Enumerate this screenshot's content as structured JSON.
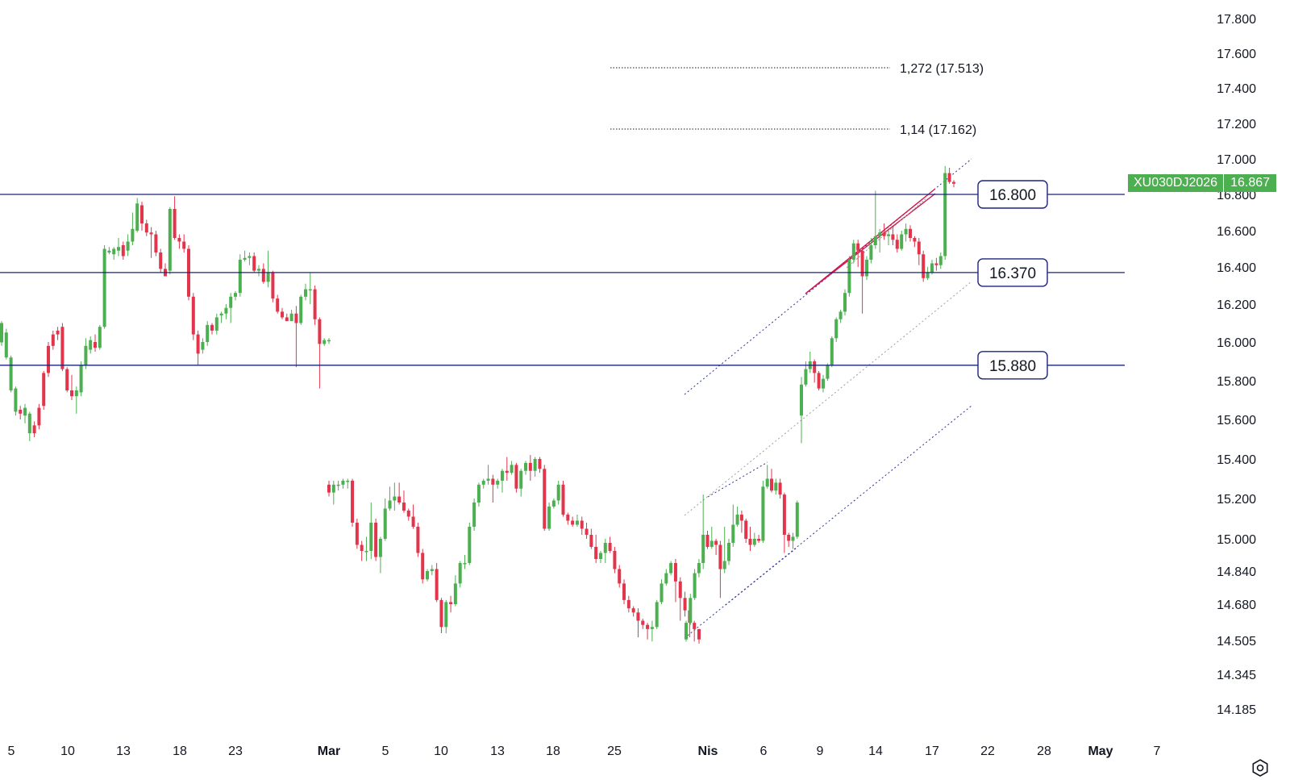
{
  "colors": {
    "up": "#4caf50",
    "down": "#e2354c",
    "level": "#1a237e",
    "channel": "#2c3299",
    "wedge": "#d0184f",
    "grey": "#9e9e9e"
  },
  "icons": {
    "settings": "gear-icon"
  },
  "ticker": {
    "symbol": "XU030DJ2026",
    "price": "16.867"
  },
  "chart_data": {
    "type": "candlestick",
    "y_ticks": [
      "17.800",
      "17.600",
      "17.400",
      "17.200",
      "17.000",
      "16.800",
      "16.600",
      "16.400",
      "16.200",
      "16.000",
      "15.800",
      "15.600",
      "15.400",
      "15.200",
      "15.000",
      "14.840",
      "14.680",
      "14.505",
      "14.345",
      "14.185"
    ],
    "x_ticks": [
      {
        "label": "5",
        "bold": false
      },
      {
        "label": "10",
        "bold": false
      },
      {
        "label": "13",
        "bold": false
      },
      {
        "label": "18",
        "bold": false
      },
      {
        "label": "23",
        "bold": false
      },
      {
        "label": "Mar",
        "bold": true
      },
      {
        "label": "5",
        "bold": false
      },
      {
        "label": "10",
        "bold": false
      },
      {
        "label": "13",
        "bold": false
      },
      {
        "label": "18",
        "bold": false
      },
      {
        "label": "25",
        "bold": false
      },
      {
        "label": "Nis",
        "bold": true
      },
      {
        "label": "6",
        "bold": false
      },
      {
        "label": "9",
        "bold": false
      },
      {
        "label": "14",
        "bold": false
      },
      {
        "label": "17",
        "bold": false
      },
      {
        "label": "22",
        "bold": false
      },
      {
        "label": "28",
        "bold": false
      },
      {
        "label": "May",
        "bold": true
      },
      {
        "label": "7",
        "bold": false
      }
    ],
    "levels": [
      {
        "label": "16.800",
        "value": 16800
      },
      {
        "label": "16.370",
        "value": 16370
      },
      {
        "label": "15.880",
        "value": 15880
      }
    ],
    "fib_levels": [
      {
        "label": "1,272 (17.513)",
        "value": 17513
      },
      {
        "label": "1,14 (17.162)",
        "value": 17162
      }
    ],
    "candles": [
      [
        15998,
        16100,
        15980,
        16110
      ],
      [
        15920,
        16050,
        15910,
        16070
      ],
      [
        15750,
        15920,
        15740,
        15930
      ],
      [
        15640,
        15760,
        15620,
        15770
      ],
      [
        15650,
        15630,
        15600,
        15670
      ],
      [
        15620,
        15660,
        15580,
        15680
      ],
      [
        15530,
        15630,
        15490,
        15640
      ],
      [
        15570,
        15530,
        15510,
        15590
      ],
      [
        15660,
        15570,
        15550,
        15680
      ],
      [
        15840,
        15670,
        15650,
        15850
      ],
      [
        15980,
        15840,
        15820,
        16000
      ],
      [
        16040,
        15980,
        15960,
        16060
      ],
      [
        16060,
        16040,
        16010,
        16080
      ],
      [
        16080,
        15860,
        15850,
        16100
      ],
      [
        15860,
        15750,
        15740,
        15870
      ],
      [
        15750,
        15720,
        15700,
        15830
      ],
      [
        15720,
        15750,
        15630,
        15770
      ],
      [
        15740,
        15880,
        15720,
        15900
      ],
      [
        15880,
        15980,
        15860,
        16020
      ],
      [
        15960,
        16010,
        15940,
        16030
      ],
      [
        16000,
        15970,
        15950,
        16040
      ],
      [
        15970,
        16080,
        15960,
        16090
      ],
      [
        16080,
        16500,
        16070,
        16520
      ],
      [
        16480,
        16490,
        16470,
        16510
      ],
      [
        16470,
        16500,
        16440,
        16510
      ],
      [
        16490,
        16510,
        16460,
        16560
      ],
      [
        16520,
        16460,
        16440,
        16540
      ],
      [
        16490,
        16540,
        16460,
        16580
      ],
      [
        16540,
        16610,
        16520,
        16700
      ],
      [
        16600,
        16750,
        16590,
        16780
      ],
      [
        16740,
        16640,
        16600,
        16760
      ],
      [
        16640,
        16590,
        16570,
        16660
      ],
      [
        16590,
        16580,
        16450,
        16620
      ],
      [
        16580,
        16480,
        16460,
        16600
      ],
      [
        16480,
        16390,
        16370,
        16500
      ],
      [
        16390,
        16350,
        16350,
        16420
      ],
      [
        16380,
        16720,
        16360,
        16730
      ],
      [
        16720,
        16560,
        16550,
        16790
      ],
      [
        16560,
        16540,
        16500,
        16580
      ],
      [
        16540,
        16500,
        16480,
        16580
      ],
      [
        16500,
        16240,
        16220,
        16520
      ],
      [
        16240,
        16040,
        16010,
        16260
      ],
      [
        16040,
        15940,
        15880,
        16060
      ],
      [
        15960,
        16000,
        15940,
        16020
      ],
      [
        16000,
        16090,
        15980,
        16110
      ],
      [
        16090,
        16060,
        16040,
        16100
      ],
      [
        16060,
        16130,
        16040,
        16150
      ],
      [
        16140,
        16150,
        16100,
        16160
      ],
      [
        16150,
        16180,
        16120,
        16200
      ],
      [
        16180,
        16240,
        16100,
        16260
      ],
      [
        16240,
        16260,
        16220,
        16270
      ],
      [
        16260,
        16440,
        16240,
        16470
      ],
      [
        16440,
        16450,
        16430,
        16490
      ],
      [
        16450,
        16460,
        16410,
        16480
      ],
      [
        16460,
        16380,
        16370,
        16480
      ],
      [
        16380,
        16390,
        16350,
        16410
      ],
      [
        16390,
        16320,
        16310,
        16420
      ],
      [
        16320,
        16370,
        16290,
        16490
      ],
      [
        16370,
        16230,
        16210,
        16380
      ],
      [
        16230,
        16160,
        16150,
        16250
      ],
      [
        16160,
        16130,
        16120,
        16180
      ],
      [
        16130,
        16110,
        16110,
        16150
      ],
      [
        16110,
        16150,
        16110,
        16170
      ],
      [
        16150,
        16100,
        15870,
        16190
      ],
      [
        16100,
        16240,
        16090,
        16250
      ],
      [
        16240,
        16280,
        16220,
        16310
      ],
      [
        16280,
        16280,
        16200,
        16370
      ],
      [
        16280,
        16120,
        16090,
        16300
      ],
      [
        16120,
        15990,
        15760,
        16130
      ],
      [
        15990,
        16010,
        15980,
        16020
      ],
      [
        16010,
        16010,
        15990,
        16020
      ],
      [
        15270,
        15230,
        15210,
        15290
      ],
      [
        15230,
        15270,
        15170,
        15290
      ],
      [
        15270,
        15270,
        15240,
        15290
      ],
      [
        15270,
        15290,
        15250,
        15300
      ],
      [
        15290,
        15290,
        15250,
        15300
      ],
      [
        15290,
        15080,
        15060,
        15300
      ],
      [
        15080,
        14970,
        14950,
        15100
      ],
      [
        14970,
        14940,
        14890,
        14990
      ],
      [
        14940,
        14940,
        14890,
        15010
      ],
      [
        14940,
        15080,
        14900,
        15180
      ],
      [
        15080,
        14910,
        14890,
        15100
      ],
      [
        14910,
        15000,
        14830,
        15010
      ],
      [
        15000,
        15150,
        14990,
        15200
      ],
      [
        15150,
        15190,
        15140,
        15260
      ],
      [
        15190,
        15210,
        15140,
        15280
      ],
      [
        15210,
        15180,
        15170,
        15280
      ],
      [
        15180,
        15140,
        15130,
        15240
      ],
      [
        15140,
        15110,
        15090,
        15150
      ],
      [
        15110,
        15060,
        15050,
        15170
      ],
      [
        15060,
        14930,
        14910,
        15080
      ],
      [
        14930,
        14800,
        14780,
        14950
      ],
      [
        14800,
        14840,
        14790,
        14850
      ],
      [
        14840,
        14850,
        14820,
        14870
      ],
      [
        14850,
        14700,
        14690,
        14880
      ],
      [
        14700,
        14570,
        14540,
        14710
      ],
      [
        14570,
        14690,
        14540,
        14700
      ],
      [
        14690,
        14680,
        14640,
        14720
      ],
      [
        14680,
        14780,
        14670,
        14820
      ],
      [
        14780,
        14880,
        14760,
        14890
      ],
      [
        14880,
        14880,
        14850,
        14920
      ],
      [
        14880,
        15060,
        14870,
        15080
      ],
      [
        15060,
        15180,
        15040,
        15200
      ],
      [
        15180,
        15270,
        15160,
        15280
      ],
      [
        15270,
        15290,
        15250,
        15300
      ],
      [
        15290,
        15300,
        15270,
        15370
      ],
      [
        15300,
        15270,
        15180,
        15320
      ],
      [
        15270,
        15290,
        15250,
        15300
      ],
      [
        15290,
        15340,
        15230,
        15350
      ],
      [
        15340,
        15330,
        15290,
        15410
      ],
      [
        15330,
        15370,
        15320,
        15390
      ],
      [
        15370,
        15250,
        15230,
        15380
      ],
      [
        15250,
        15340,
        15210,
        15350
      ],
      [
        15340,
        15380,
        15320,
        15390
      ],
      [
        15380,
        15340,
        15290,
        15420
      ],
      [
        15340,
        15400,
        15310,
        15410
      ],
      [
        15400,
        15350,
        15330,
        15410
      ],
      [
        15350,
        15050,
        15040,
        15370
      ],
      [
        15050,
        15160,
        15040,
        15180
      ],
      [
        15160,
        15190,
        15150,
        15200
      ],
      [
        15190,
        15270,
        15170,
        15290
      ],
      [
        15270,
        15120,
        15110,
        15290
      ],
      [
        15120,
        15090,
        15070,
        15130
      ],
      [
        15090,
        15070,
        15060,
        15110
      ],
      [
        15070,
        15090,
        15060,
        15120
      ],
      [
        15090,
        15050,
        15020,
        15110
      ],
      [
        15050,
        15020,
        15000,
        15080
      ],
      [
        15020,
        14960,
        14950,
        15050
      ],
      [
        14960,
        14900,
        14880,
        15020
      ],
      [
        14900,
        14930,
        14880,
        14940
      ],
      [
        14930,
        14980,
        14880,
        15000
      ],
      [
        14980,
        14940,
        14930,
        15010
      ],
      [
        14940,
        14850,
        14830,
        14960
      ],
      [
        14850,
        14780,
        14760,
        14870
      ],
      [
        14780,
        14700,
        14680,
        14800
      ],
      [
        14700,
        14660,
        14640,
        14720
      ],
      [
        14660,
        14640,
        14620,
        14670
      ],
      [
        14640,
        14600,
        14520,
        14660
      ],
      [
        14600,
        14580,
        14560,
        14610
      ],
      [
        14580,
        14560,
        14510,
        14590
      ],
      [
        14560,
        14570,
        14500,
        14600
      ],
      [
        14570,
        14690,
        14560,
        14700
      ],
      [
        14690,
        14780,
        14680,
        14800
      ],
      [
        14780,
        14830,
        14770,
        14850
      ],
      [
        14830,
        14880,
        14820,
        14890
      ],
      [
        14880,
        14790,
        14690,
        14900
      ],
      [
        14790,
        14710,
        14600,
        14810
      ],
      [
        14710,
        14650,
        14620,
        14740
      ],
      [
        14650,
        14590,
        14520,
        14660
      ],
      [
        14590,
        14560,
        14500,
        14600
      ],
      [
        14560,
        14510,
        14490,
        14560
      ],
      [
        14510,
        14590,
        14500,
        14600
      ],
      [
        14590,
        14710,
        14580,
        14730
      ],
      [
        14710,
        14830,
        14700,
        14850
      ],
      [
        14830,
        14880,
        14810,
        14900
      ],
      [
        14880,
        15020,
        14850,
        15220
      ],
      [
        15020,
        14960,
        14950,
        15040
      ],
      [
        14960,
        14990,
        14950,
        15060
      ],
      [
        14990,
        14970,
        14920,
        15000
      ],
      [
        14970,
        14850,
        14710,
        14990
      ],
      [
        14850,
        14890,
        14830,
        15060
      ],
      [
        14890,
        14980,
        14870,
        15000
      ],
      [
        14980,
        15070,
        14960,
        15170
      ],
      [
        15070,
        15120,
        15060,
        15160
      ],
      [
        15120,
        15090,
        15030,
        15140
      ],
      [
        15090,
        15000,
        14980,
        15100
      ],
      [
        15000,
        14970,
        14940,
        15060
      ],
      [
        14970,
        15000,
        14960,
        15030
      ],
      [
        15000,
        14990,
        14980,
        15020
      ],
      [
        14990,
        15260,
        14980,
        15290
      ],
      [
        15260,
        15300,
        15250,
        15370
      ],
      [
        15300,
        15240,
        15230,
        15350
      ],
      [
        15240,
        15280,
        15220,
        15300
      ],
      [
        15280,
        15220,
        15200,
        15300
      ],
      [
        15220,
        15020,
        14930,
        15230
      ],
      [
        15020,
        14990,
        14960,
        15030
      ],
      [
        14990,
        15010,
        14950,
        15030
      ],
      [
        15010,
        15180,
        15000,
        15190
      ],
      [
        15620,
        15780,
        15480,
        15820
      ],
      [
        15780,
        15860,
        15770,
        15900
      ],
      [
        15860,
        15900,
        15840,
        15950
      ],
      [
        15900,
        15840,
        15790,
        15910
      ],
      [
        15840,
        15760,
        15750,
        15850
      ],
      [
        15760,
        15810,
        15740,
        15830
      ],
      [
        15810,
        15880,
        15800,
        15890
      ],
      [
        15880,
        16020,
        15870,
        16030
      ],
      [
        16020,
        16120,
        16000,
        16130
      ],
      [
        16120,
        16160,
        16100,
        16170
      ],
      [
        16160,
        16260,
        16140,
        16280
      ],
      [
        16260,
        16440,
        16240,
        16460
      ],
      [
        16440,
        16530,
        16420,
        16550
      ],
      [
        16530,
        16490,
        16400,
        16550
      ],
      [
        16490,
        16350,
        16150,
        16510
      ],
      [
        16350,
        16440,
        16330,
        16460
      ],
      [
        16440,
        16520,
        16420,
        16560
      ],
      [
        16520,
        16570,
        16500,
        16820
      ],
      [
        16570,
        16590,
        16480,
        16610
      ],
      [
        16590,
        16570,
        16550,
        16640
      ],
      [
        16570,
        16580,
        16520,
        16600
      ],
      [
        16580,
        16550,
        16520,
        16620
      ],
      [
        16550,
        16500,
        16480,
        16580
      ],
      [
        16500,
        16580,
        16490,
        16600
      ],
      [
        16580,
        16610,
        16540,
        16640
      ],
      [
        16610,
        16560,
        16540,
        16630
      ],
      [
        16560,
        16540,
        16510,
        16570
      ],
      [
        16540,
        16470,
        16410,
        16560
      ],
      [
        16470,
        16340,
        16320,
        16490
      ],
      [
        16340,
        16370,
        16330,
        16400
      ],
      [
        16370,
        16420,
        16360,
        16440
      ],
      [
        16420,
        16410,
        16380,
        16450
      ],
      [
        16410,
        16460,
        16390,
        16480
      ],
      [
        16460,
        16920,
        16440,
        16960
      ],
      [
        16920,
        16870,
        16860,
        16950
      ],
      [
        16870,
        16860,
        16840,
        16880
      ]
    ]
  }
}
